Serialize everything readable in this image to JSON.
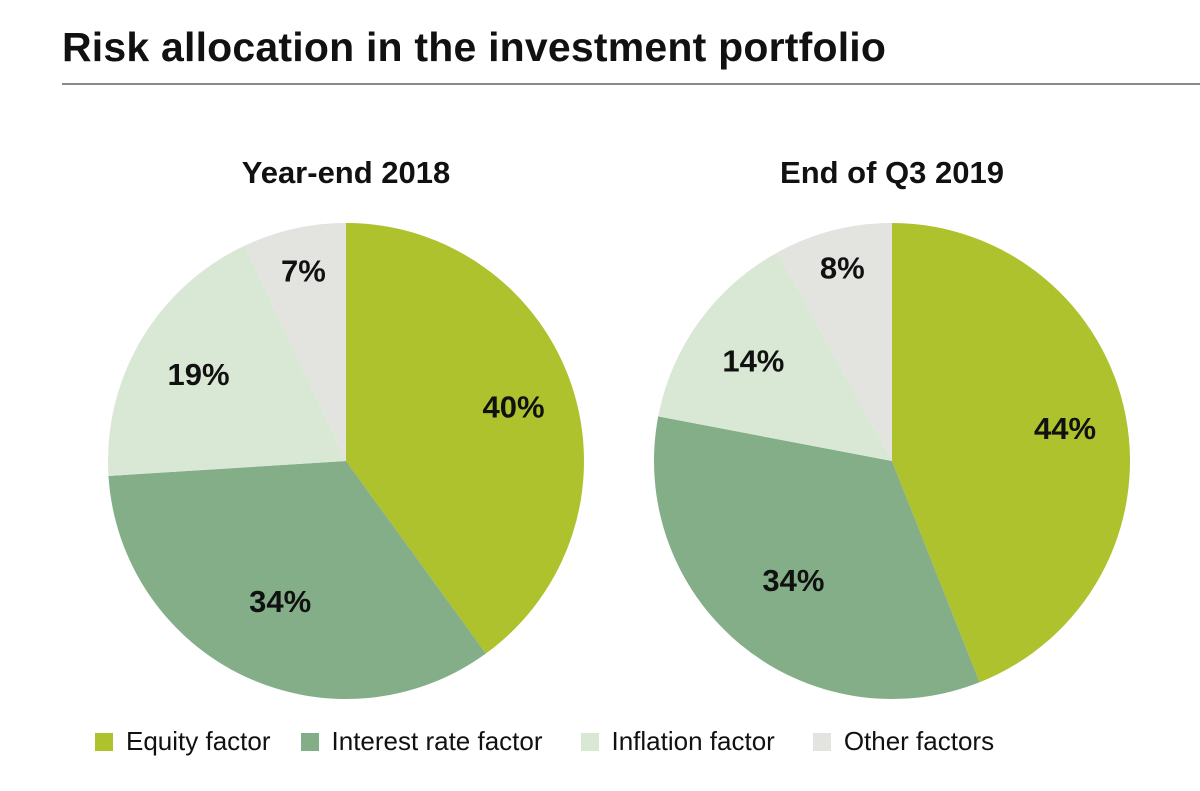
{
  "page": {
    "title": "Risk allocation in the investment portfolio"
  },
  "colors": {
    "equity": "#adc22c",
    "interest": "#84ae88",
    "inflation": "#d9e7d5",
    "other": "#e3e3e0"
  },
  "chart_data": [
    {
      "type": "pie",
      "title": "Year-end 2018",
      "categories": [
        "Equity factor",
        "Interest rate factor",
        "Inflation factor",
        "Other factors"
      ],
      "values": [
        40,
        34,
        19,
        7
      ],
      "labels": [
        "40%",
        "34%",
        "19%",
        "7%"
      ]
    },
    {
      "type": "pie",
      "title": "End of Q3 2019",
      "categories": [
        "Equity factor",
        "Interest rate factor",
        "Inflation factor",
        "Other factors"
      ],
      "values": [
        44,
        34,
        14,
        8
      ],
      "labels": [
        "44%",
        "34%",
        "14%",
        "8%"
      ]
    }
  ],
  "legend": {
    "position": "bottom",
    "items": [
      {
        "label": "Equity factor",
        "color": "#adc22c"
      },
      {
        "label": "Interest rate factor",
        "color": "#84ae88"
      },
      {
        "label": "Inflation factor",
        "color": "#d9e7d5"
      },
      {
        "label": "Other factors",
        "color": "#e3e3e0"
      }
    ]
  }
}
